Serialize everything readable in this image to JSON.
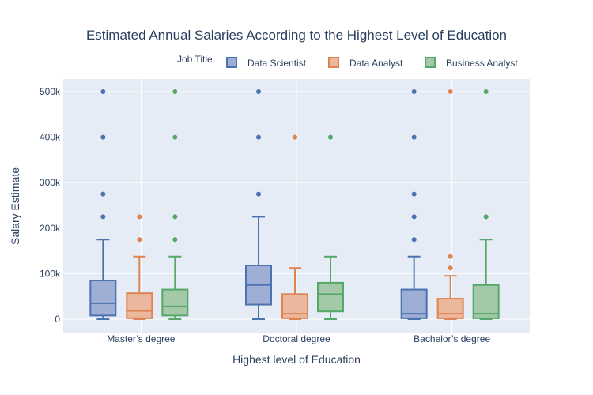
{
  "chart_data": {
    "type": "box",
    "title": "Estimated Annual Salaries According to the Highest Level of Education",
    "xlabel": "Highest level of Education",
    "ylabel": "Salary Estimate",
    "categories": [
      "Master’s degree",
      "Doctoral degree",
      "Bachelor’s degree"
    ],
    "ylim": [
      -30000,
      530000
    ],
    "yticks": [
      0,
      100000,
      200000,
      300000,
      400000,
      500000
    ],
    "ytick_labels": [
      "0",
      "100k",
      "200k",
      "300k",
      "400k",
      "500k"
    ],
    "legend": {
      "title": "Job Title",
      "placement": "top-right, horizontal"
    },
    "grid": true,
    "series": [
      {
        "name": "Data Scientist",
        "color": "#4c72b0",
        "fill": "#9eaed5",
        "boxes": [
          {
            "min": 0,
            "q1": 8000,
            "median": 35000,
            "q3": 85000,
            "max": 175000,
            "outliers": [
              225000,
              275000,
              400000,
              500000
            ]
          },
          {
            "min": 0,
            "q1": 32000,
            "median": 75000,
            "q3": 118000,
            "max": 225000,
            "outliers": [
              275000,
              400000,
              500000
            ]
          },
          {
            "min": 0,
            "q1": 2000,
            "median": 12000,
            "q3": 65000,
            "max": 137500,
            "outliers": [
              175000,
              225000,
              275000,
              400000,
              500000
            ]
          }
        ]
      },
      {
        "name": "Data Analyst",
        "color": "#dd8452",
        "fill": "#ecb89d",
        "boxes": [
          {
            "min": 0,
            "q1": 2000,
            "median": 18000,
            "q3": 57000,
            "max": 137500,
            "outliers": [
              175000,
              225000
            ]
          },
          {
            "min": 0,
            "q1": 2000,
            "median": 12000,
            "q3": 55000,
            "max": 112500,
            "outliers": [
              400000
            ]
          },
          {
            "min": 0,
            "q1": 2000,
            "median": 12000,
            "q3": 45000,
            "max": 95000,
            "outliers": [
              112500,
              137500,
              500000
            ]
          }
        ]
      },
      {
        "name": "Business Analyst",
        "color": "#55a868",
        "fill": "#a3c9a9",
        "boxes": [
          {
            "min": 0,
            "q1": 8000,
            "median": 28000,
            "q3": 65000,
            "max": 137500,
            "outliers": [
              175000,
              225000,
              400000,
              500000
            ]
          },
          {
            "min": 0,
            "q1": 17000,
            "median": 55000,
            "q3": 80000,
            "max": 137500,
            "outliers": [
              400000
            ]
          },
          {
            "min": 0,
            "q1": 2000,
            "median": 12000,
            "q3": 75000,
            "max": 175000,
            "outliers": [
              225000,
              500000
            ]
          }
        ]
      }
    ]
  }
}
